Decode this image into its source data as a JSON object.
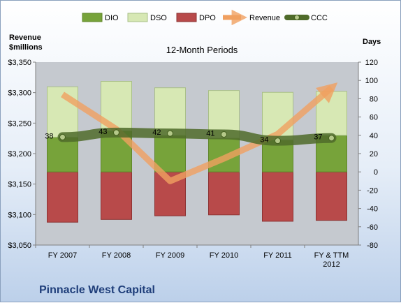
{
  "chart_data": {
    "type": "bar",
    "title": "12-Month Periods",
    "company": "Pinnacle West Capital",
    "left_axis_label_line1": "Revenue",
    "left_axis_label_line2": "$millions",
    "right_axis_label": "Days",
    "categories": [
      "FY 2007",
      "FY 2008",
      "FY 2009",
      "FY 2010",
      "FY 2011",
      "FY & TTM 2012"
    ],
    "category_lines": [
      [
        "FY 2007"
      ],
      [
        "FY 2008"
      ],
      [
        "FY 2009"
      ],
      [
        "FY 2010"
      ],
      [
        "FY 2011"
      ],
      [
        "FY & TTM",
        "2012"
      ]
    ],
    "left_ylim": [
      3050,
      3350
    ],
    "left_ticks": [
      "$3,050",
      "$3,100",
      "$3,150",
      "$3,200",
      "$3,250",
      "$3,300",
      "$3,350"
    ],
    "left_tick_values": [
      3050,
      3100,
      3150,
      3200,
      3250,
      3300,
      3350
    ],
    "right_ylim": [
      -80,
      120
    ],
    "right_ticks": [
      "-80",
      "-60",
      "-40",
      "-20",
      "0",
      "20",
      "40",
      "60",
      "80",
      "100",
      "120"
    ],
    "right_tick_values": [
      -80,
      -60,
      -40,
      -20,
      0,
      20,
      40,
      60,
      80,
      100,
      120
    ],
    "series": [
      {
        "name": "DIO",
        "axis": "right",
        "color": "#77a33a",
        "values": [
          38,
          45,
          40,
          37,
          35,
          40
        ]
      },
      {
        "name": "DSO",
        "axis": "right",
        "color": "#d7e8b4",
        "values": [
          55,
          54,
          52,
          52,
          52,
          48
        ]
      },
      {
        "name": "DPO",
        "axis": "right",
        "color": "#b84a4a",
        "values": [
          55,
          52,
          48,
          47,
          54,
          53
        ]
      },
      {
        "name": "Revenue",
        "axis": "left",
        "color": "#f0a060",
        "values": [
          3297,
          3240,
          3155,
          3192,
          3232,
          3308
        ]
      },
      {
        "name": "CCC",
        "axis": "right",
        "color": "#5a7a30",
        "values": [
          38,
          43,
          42,
          41,
          34,
          37
        ]
      }
    ],
    "ccc_labels": [
      "38",
      "43",
      "42",
      "41",
      "34",
      "37"
    ],
    "grid": false,
    "legend_position": "top"
  }
}
